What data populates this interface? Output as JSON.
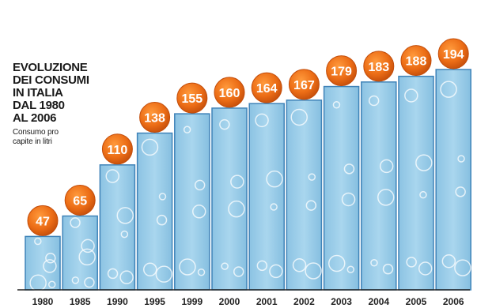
{
  "title_lines": [
    "EVOLUZIONE",
    "DEI CONSUMI",
    "IN ITALIA",
    "DAL 1980",
    "AL 2006"
  ],
  "subtitle": "Consumo pro capite in litri",
  "colors": {
    "bar_fill": "#9ecfe9",
    "bar_border": "#3f83b8",
    "bubble": "#ec6d16",
    "bubble_dark": "#c34d0a",
    "label_text": "#ffffff",
    "axis": "#222222"
  },
  "chart_data": {
    "type": "bar",
    "title": "EVOLUZIONE DEI CONSUMI IN ITALIA DAL 1980 AL 2006",
    "subtitle": "Consumo pro capite in litri",
    "categories": [
      "1980",
      "1985",
      "1990",
      "1995",
      "1999",
      "2000",
      "2001",
      "2002",
      "2003",
      "2004",
      "2005",
      "2006"
    ],
    "values": [
      47,
      65,
      110,
      138,
      155,
      160,
      164,
      167,
      179,
      183,
      188,
      194
    ],
    "xlabel": "",
    "ylabel": "",
    "ylim": [
      0,
      200
    ],
    "grid": false,
    "data_labels": true
  }
}
